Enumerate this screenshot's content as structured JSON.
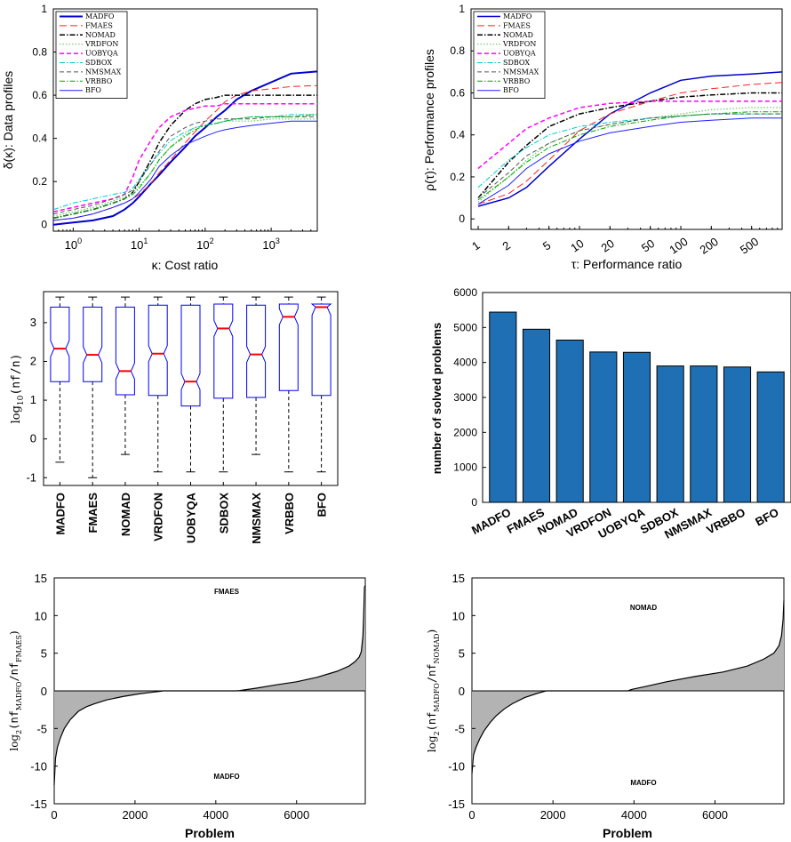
{
  "colors": {
    "MADFO": "#0000cc",
    "FMAES": "#ff2020",
    "NOMAD": "#000000",
    "VRDFON": "#66cc66",
    "UOBYQA": "#ff00ff",
    "SDBOX": "#00cccc",
    "NMSMAX": "#555555",
    "VRBBO": "#00aa00",
    "BFO": "#2020ff",
    "bar": "#1f6fb4",
    "fill": "#b3b3b3",
    "median": "#ff0000",
    "box": "#0000ff"
  },
  "chart_data": [
    {
      "type": "line",
      "id": "data_profiles",
      "ylabel": "δ(κ): Data profiles",
      "xlabel": "κ: Cost ratio",
      "xscale": "log",
      "xlim": [
        0.5,
        5000
      ],
      "ylim": [
        -0.03,
        1
      ],
      "xticks": [
        {
          "v": 1,
          "label": "10",
          "sup": "0"
        },
        {
          "v": 10,
          "label": "10",
          "sup": "1"
        },
        {
          "v": 100,
          "label": "10",
          "sup": "2"
        },
        {
          "v": 1000,
          "label": "10",
          "sup": "3"
        }
      ],
      "yticks": [
        "0",
        "0.2",
        "0.4",
        "0.6",
        "0.8",
        "1"
      ],
      "legend_position": "top-left",
      "legend": [
        "MADFO",
        "FMAES",
        "NOMAD",
        "VRDFON",
        "UOBYQA",
        "SDBOX",
        "NMSMAX",
        "VRBBO",
        "BFO"
      ],
      "x": [
        0.5,
        1,
        2,
        4,
        6,
        8,
        10,
        15,
        20,
        30,
        50,
        70,
        100,
        150,
        200,
        300,
        500,
        1000,
        2000,
        5000
      ],
      "series": [
        {
          "name": "MADFO",
          "style": "solid",
          "width": 2,
          "values": [
            0.0,
            0.01,
            0.02,
            0.04,
            0.07,
            0.1,
            0.13,
            0.19,
            0.23,
            0.29,
            0.36,
            0.41,
            0.45,
            0.5,
            0.53,
            0.58,
            0.62,
            0.66,
            0.7,
            0.71
          ]
        },
        {
          "name": "FMAES",
          "style": "longdash",
          "width": 1,
          "values": [
            0.02,
            0.03,
            0.05,
            0.08,
            0.1,
            0.12,
            0.14,
            0.19,
            0.24,
            0.3,
            0.38,
            0.43,
            0.48,
            0.53,
            0.57,
            0.6,
            0.62,
            0.63,
            0.64,
            0.645
          ]
        },
        {
          "name": "NOMAD",
          "style": "dashdot",
          "width": 1.5,
          "values": [
            0.03,
            0.05,
            0.07,
            0.1,
            0.12,
            0.15,
            0.2,
            0.3,
            0.38,
            0.46,
            0.53,
            0.56,
            0.58,
            0.59,
            0.6,
            0.6,
            0.6,
            0.6,
            0.6,
            0.6
          ]
        },
        {
          "name": "VRDFON",
          "style": "dotted",
          "width": 1.2,
          "values": [
            0.04,
            0.06,
            0.08,
            0.11,
            0.13,
            0.15,
            0.18,
            0.24,
            0.3,
            0.36,
            0.42,
            0.45,
            0.46,
            0.47,
            0.48,
            0.48,
            0.48,
            0.49,
            0.49,
            0.49
          ]
        },
        {
          "name": "UOBYQA",
          "style": "dashed",
          "width": 1.5,
          "values": [
            0.06,
            0.08,
            0.1,
            0.12,
            0.14,
            0.22,
            0.3,
            0.39,
            0.45,
            0.5,
            0.53,
            0.54,
            0.55,
            0.55,
            0.56,
            0.56,
            0.56,
            0.56,
            0.56,
            0.56
          ]
        },
        {
          "name": "SDBOX",
          "style": "dashdot",
          "width": 1,
          "values": [
            0.07,
            0.1,
            0.12,
            0.14,
            0.15,
            0.17,
            0.21,
            0.28,
            0.33,
            0.39,
            0.43,
            0.45,
            0.46,
            0.47,
            0.48,
            0.49,
            0.5,
            0.5,
            0.51,
            0.51
          ]
        },
        {
          "name": "NMSMAX",
          "style": "dashed",
          "width": 1,
          "values": [
            0.05,
            0.07,
            0.09,
            0.12,
            0.14,
            0.16,
            0.2,
            0.28,
            0.34,
            0.41,
            0.45,
            0.47,
            0.48,
            0.49,
            0.49,
            0.49,
            0.49,
            0.5,
            0.5,
            0.5
          ]
        },
        {
          "name": "VRBBO",
          "style": "dashdot",
          "width": 1,
          "values": [
            0.03,
            0.05,
            0.07,
            0.1,
            0.12,
            0.14,
            0.17,
            0.24,
            0.3,
            0.36,
            0.41,
            0.44,
            0.46,
            0.47,
            0.48,
            0.49,
            0.5,
            0.5,
            0.5,
            0.51
          ]
        },
        {
          "name": "BFO",
          "style": "solid",
          "width": 1,
          "values": [
            0.02,
            0.03,
            0.05,
            0.08,
            0.1,
            0.12,
            0.15,
            0.21,
            0.27,
            0.32,
            0.37,
            0.39,
            0.41,
            0.43,
            0.44,
            0.45,
            0.46,
            0.47,
            0.48,
            0.48
          ]
        }
      ]
    },
    {
      "type": "line",
      "id": "performance_profiles",
      "ylabel": "ρ(τ): Performance profiles",
      "xlabel": "τ: Performance ratio",
      "xscale": "log",
      "xlim": [
        1,
        1000
      ],
      "ylim": [
        -0.05,
        1
      ],
      "xticks": [
        {
          "v": 1,
          "label": "1"
        },
        {
          "v": 2,
          "label": "2"
        },
        {
          "v": 5,
          "label": "5"
        },
        {
          "v": 10,
          "label": "10"
        },
        {
          "v": 20,
          "label": "20"
        },
        {
          "v": 50,
          "label": "50"
        },
        {
          "v": 100,
          "label": "100"
        },
        {
          "v": 200,
          "label": "200"
        },
        {
          "v": 500,
          "label": "500"
        }
      ],
      "yticks": [
        "0",
        "0.2",
        "0.4",
        "0.6",
        "0.8",
        "1"
      ],
      "legend_position": "top-left",
      "legend": [
        "MADFO",
        "FMAES",
        "NOMAD",
        "VRDFON",
        "UOBYQA",
        "SDBOX",
        "NMSMAX",
        "VRBBO",
        "BFO"
      ],
      "x": [
        1,
        2,
        3,
        5,
        10,
        20,
        50,
        100,
        200,
        500,
        1000
      ],
      "series": [
        {
          "name": "MADFO",
          "style": "solid",
          "width": 1.5,
          "values": [
            0.06,
            0.1,
            0.15,
            0.25,
            0.38,
            0.5,
            0.6,
            0.66,
            0.68,
            0.69,
            0.7
          ]
        },
        {
          "name": "FMAES",
          "style": "longdash",
          "width": 1,
          "values": [
            0.07,
            0.12,
            0.18,
            0.28,
            0.42,
            0.5,
            0.56,
            0.6,
            0.62,
            0.64,
            0.65
          ]
        },
        {
          "name": "NOMAD",
          "style": "dashdot",
          "width": 1.5,
          "values": [
            0.1,
            0.27,
            0.35,
            0.44,
            0.5,
            0.53,
            0.56,
            0.58,
            0.59,
            0.6,
            0.6
          ]
        },
        {
          "name": "VRDFON",
          "style": "dotted",
          "width": 1.2,
          "values": [
            0.08,
            0.2,
            0.28,
            0.36,
            0.42,
            0.45,
            0.48,
            0.5,
            0.52,
            0.53,
            0.53
          ]
        },
        {
          "name": "UOBYQA",
          "style": "dashed",
          "width": 1.5,
          "values": [
            0.24,
            0.36,
            0.43,
            0.48,
            0.53,
            0.55,
            0.56,
            0.56,
            0.56,
            0.56,
            0.56
          ]
        },
        {
          "name": "SDBOX",
          "style": "dashdot",
          "width": 1,
          "values": [
            0.15,
            0.28,
            0.34,
            0.4,
            0.44,
            0.46,
            0.48,
            0.49,
            0.5,
            0.5,
            0.5
          ]
        },
        {
          "name": "NMSMAX",
          "style": "dashed",
          "width": 1,
          "values": [
            0.1,
            0.22,
            0.3,
            0.36,
            0.42,
            0.45,
            0.48,
            0.49,
            0.5,
            0.5,
            0.5
          ]
        },
        {
          "name": "VRBBO",
          "style": "dashdot",
          "width": 1,
          "values": [
            0.09,
            0.2,
            0.27,
            0.34,
            0.4,
            0.44,
            0.47,
            0.49,
            0.5,
            0.51,
            0.51
          ]
        },
        {
          "name": "BFO",
          "style": "solid",
          "width": 1,
          "values": [
            0.07,
            0.16,
            0.24,
            0.31,
            0.37,
            0.41,
            0.44,
            0.46,
            0.47,
            0.48,
            0.48
          ]
        }
      ]
    },
    {
      "type": "box",
      "id": "boxplot",
      "ylabel": "log10(nf/n)",
      "ylim": [
        -1.2,
        3.8
      ],
      "yticks": [
        "-1",
        "0",
        "1",
        "2",
        "3"
      ],
      "categories": [
        "MADFO",
        "FMAES",
        "NOMAD",
        "VRDFON",
        "UOBYQA",
        "SDBOX",
        "NMSMAX",
        "VRBBO",
        "BFO"
      ],
      "boxes": [
        {
          "min": -0.6,
          "q1": 1.48,
          "median": 2.33,
          "q3": 3.4,
          "max": 3.66
        },
        {
          "min": -1.0,
          "q1": 1.48,
          "median": 2.17,
          "q3": 3.4,
          "max": 3.66
        },
        {
          "min": -0.4,
          "q1": 1.14,
          "median": 1.75,
          "q3": 3.4,
          "max": 3.66
        },
        {
          "min": -0.85,
          "q1": 1.12,
          "median": 2.2,
          "q3": 3.45,
          "max": 3.66
        },
        {
          "min": -0.85,
          "q1": 0.85,
          "median": 1.48,
          "q3": 3.45,
          "max": 3.66
        },
        {
          "min": -0.85,
          "q1": 1.05,
          "median": 2.85,
          "q3": 3.48,
          "max": 3.66
        },
        {
          "min": -0.4,
          "q1": 1.07,
          "median": 2.18,
          "q3": 3.45,
          "max": 3.66
        },
        {
          "min": -0.85,
          "q1": 1.25,
          "median": 3.15,
          "q3": 3.48,
          "max": 3.66
        },
        {
          "min": -0.85,
          "q1": 1.12,
          "median": 3.4,
          "q3": 3.48,
          "max": 3.66
        }
      ]
    },
    {
      "type": "bar",
      "id": "solved_problems",
      "ylabel": "number of solved problems",
      "ylim": [
        0,
        6000
      ],
      "yticks": [
        "0",
        "1000",
        "2000",
        "3000",
        "4000",
        "5000",
        "6000"
      ],
      "categories": [
        "MADFO",
        "FMAES",
        "NOMAD",
        "VRDFON",
        "UOBYQA",
        "SDBOX",
        "NMSMAX",
        "VRBBO",
        "BFO"
      ],
      "values": [
        5440,
        4950,
        4640,
        4300,
        4290,
        3900,
        3900,
        3870,
        3730
      ]
    },
    {
      "type": "area",
      "id": "madfo_vs_fmaes",
      "xlabel": "Problem",
      "ylabel_main": "log",
      "ylabel_sub": "2",
      "ylabel_rest": "(nf",
      "ylabel_s1": "MADFO",
      "ylabel_mid": "/nf",
      "ylabel_s2": "FMAES",
      "ylabel_end": ")",
      "xlim": [
        0,
        7700
      ],
      "ylim": [
        -15,
        15
      ],
      "xticks": [
        "0",
        "2000",
        "4000",
        "6000"
      ],
      "yticks": [
        "-15",
        "-10",
        "-5",
        "0",
        "5",
        "10",
        "15"
      ],
      "top_label": "FMAES",
      "bottom_label": "MADFO",
      "x": [
        0,
        30,
        80,
        150,
        250,
        400,
        600,
        800,
        1000,
        1300,
        1700,
        2100,
        2400,
        2650,
        2700,
        4500,
        4600,
        5000,
        5500,
        6000,
        6500,
        7000,
        7300,
        7450,
        7550,
        7600,
        7640,
        7660,
        7680,
        7700
      ],
      "values": [
        -12.5,
        -9,
        -7.5,
        -6.3,
        -5,
        -3.8,
        -2.7,
        -2.1,
        -1.7,
        -1.2,
        -0.75,
        -0.4,
        -0.2,
        -0.05,
        0,
        0,
        0.05,
        0.35,
        0.8,
        1.2,
        1.8,
        2.6,
        3.3,
        3.9,
        4.5,
        5.2,
        7.2,
        10,
        13.8,
        14
      ]
    },
    {
      "type": "area",
      "id": "madfo_vs_nomad",
      "xlabel": "Problem",
      "ylabel_main": "log",
      "ylabel_sub": "2",
      "ylabel_rest": "(nf",
      "ylabel_s1": "MADFO",
      "ylabel_mid": "/nf",
      "ylabel_s2": "NOMAD",
      "ylabel_end": ")",
      "xlim": [
        0,
        7700
      ],
      "ylim": [
        -15,
        15
      ],
      "xticks": [
        "0",
        "2000",
        "4000",
        "6000"
      ],
      "yticks": [
        "-15",
        "-10",
        "-5",
        "0",
        "5",
        "10",
        "15"
      ],
      "top_label": "NOMAD",
      "bottom_label": "MADFO",
      "x": [
        0,
        40,
        100,
        200,
        300,
        450,
        600,
        800,
        1000,
        1300,
        1600,
        1800,
        1850,
        3850,
        3950,
        4300,
        4800,
        5500,
        6200,
        6800,
        7200,
        7450,
        7580,
        7640,
        7680,
        7700
      ],
      "values": [
        -11,
        -8.5,
        -7.5,
        -6.3,
        -5.3,
        -4.2,
        -3.3,
        -2.4,
        -1.7,
        -0.9,
        -0.35,
        -0.05,
        0,
        0,
        0.2,
        0.6,
        1.2,
        1.9,
        2.5,
        3.3,
        4.2,
        5,
        6,
        7.3,
        9.5,
        12
      ]
    }
  ]
}
